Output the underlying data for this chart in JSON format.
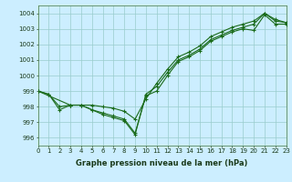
{
  "xlabel": "Graphe pression niveau de la mer (hPa)",
  "background_color": "#cceeff",
  "grid_color": "#99cccc",
  "line_color": "#1a6b1a",
  "xlim": [
    0,
    23
  ],
  "ylim": [
    995.5,
    1004.5
  ],
  "yticks": [
    996,
    997,
    998,
    999,
    1000,
    1001,
    1002,
    1003,
    1004
  ],
  "xticks": [
    0,
    1,
    2,
    3,
    4,
    5,
    6,
    7,
    8,
    9,
    10,
    11,
    12,
    13,
    14,
    15,
    16,
    17,
    18,
    19,
    20,
    21,
    22,
    23
  ],
  "line1_x": [
    0,
    1,
    2,
    3,
    4,
    5,
    6,
    7,
    8,
    9,
    10,
    11,
    12,
    13,
    14,
    15,
    16,
    17,
    18,
    19,
    20,
    21,
    22,
    23
  ],
  "line1_y": [
    999.0,
    998.8,
    997.8,
    998.1,
    998.1,
    998.1,
    998.0,
    997.9,
    997.7,
    997.2,
    998.5,
    999.5,
    1000.4,
    1001.2,
    1001.5,
    1001.9,
    1002.5,
    1002.8,
    1003.1,
    1003.3,
    1003.5,
    1004.0,
    1003.5,
    1003.4
  ],
  "line2_x": [
    0,
    1,
    2,
    3,
    4,
    5,
    6,
    7,
    8,
    9,
    10,
    11,
    12,
    13,
    14,
    15,
    16,
    17,
    18,
    19,
    20,
    21,
    22,
    23
  ],
  "line2_y": [
    999.0,
    998.8,
    998.0,
    998.1,
    998.1,
    997.8,
    997.5,
    997.3,
    997.1,
    996.2,
    998.8,
    999.3,
    1000.2,
    1001.0,
    1001.3,
    1001.7,
    1002.3,
    1002.6,
    1002.9,
    1003.1,
    1003.3,
    1004.0,
    1003.6,
    1003.4
  ],
  "line3_x": [
    0,
    3,
    4,
    5,
    6,
    7,
    8,
    9,
    10,
    11,
    12,
    13,
    14,
    15,
    16,
    17,
    18,
    19,
    20,
    21,
    22,
    23
  ],
  "line3_y": [
    999.0,
    998.1,
    998.1,
    997.8,
    997.6,
    997.4,
    997.2,
    996.3,
    998.7,
    999.0,
    1000.0,
    1000.9,
    1001.2,
    1001.6,
    1002.2,
    1002.5,
    1002.8,
    1003.0,
    1002.9,
    1003.9,
    1003.3,
    1003.3
  ],
  "xlabel_fontsize": 6.0,
  "tick_fontsize": 5.0
}
